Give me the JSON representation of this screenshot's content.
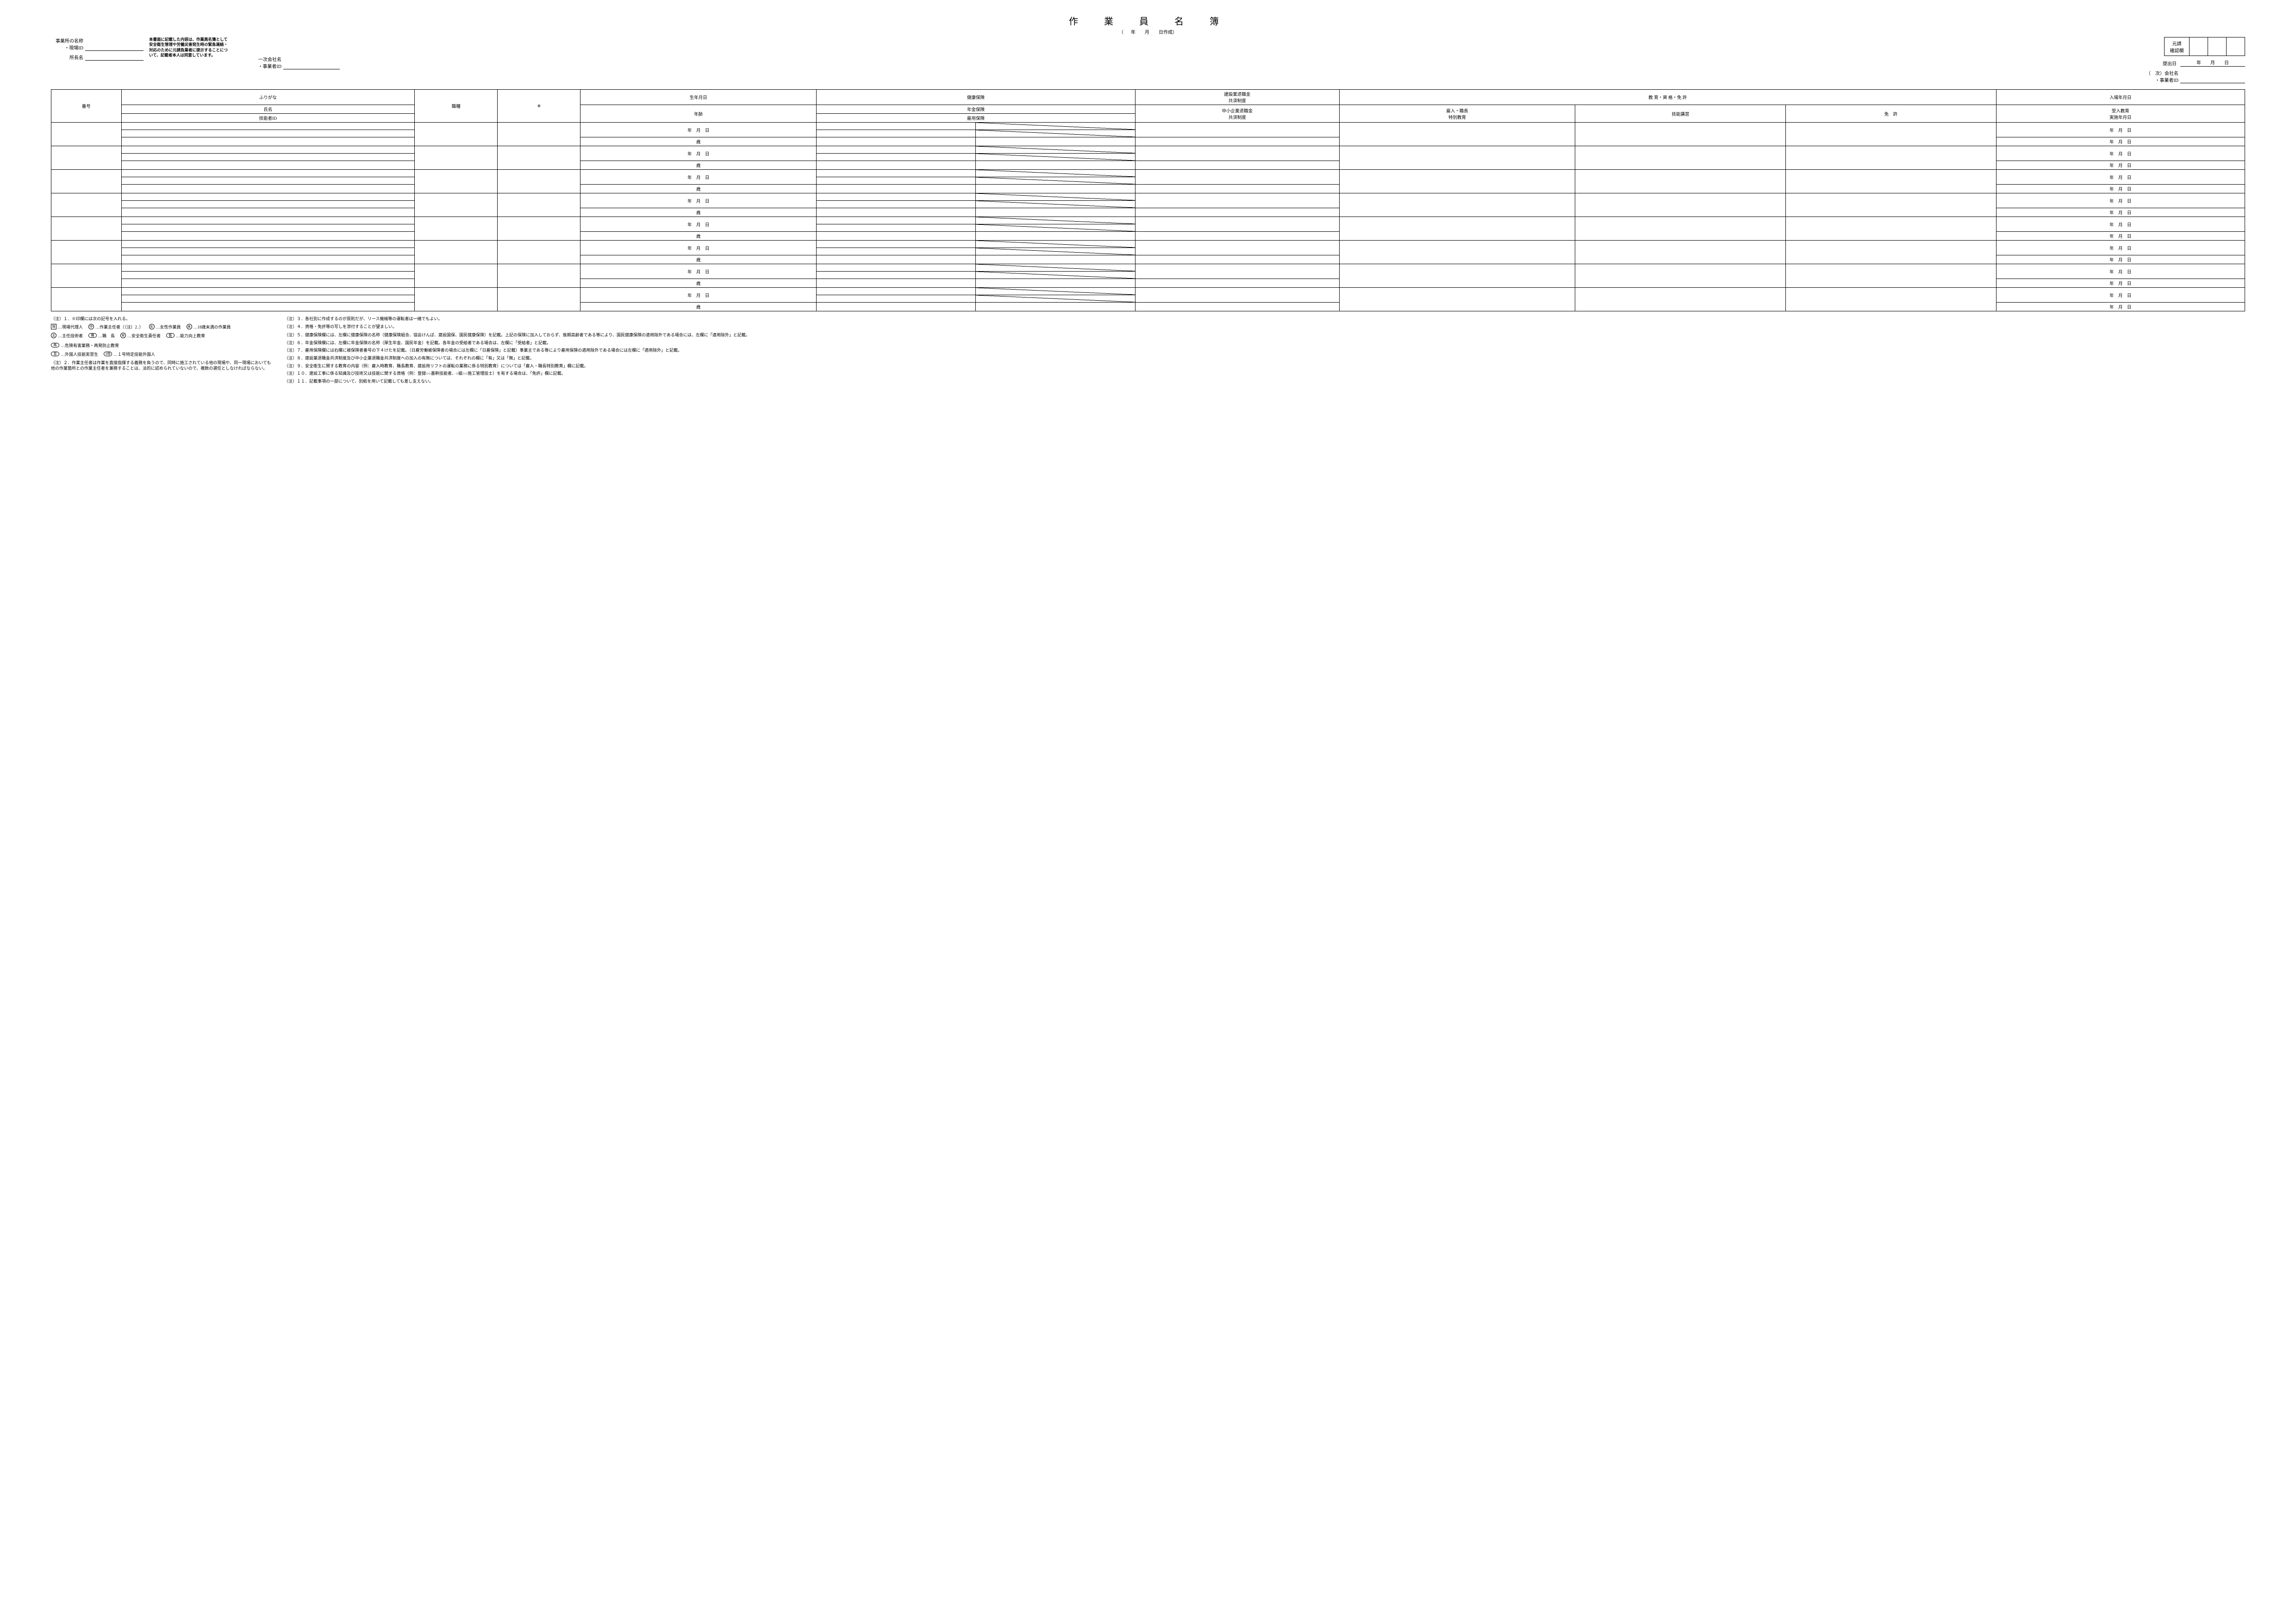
{
  "title": "作　業　員　名　簿",
  "subtitle_open": "（",
  "subtitle_date": "年　　月　　日作成",
  "subtitle_close": "）",
  "left": {
    "office_label": "事業所の名称\n・現場ID",
    "foreman_label": "所長名"
  },
  "consent": "本書面に記載した内容は、作業員名簿として安全衛生管理や労働災害発生時の緊急連絡・対応のために元請負業者に提示することについて、記載者本人は同意しています。",
  "mid": {
    "primary_label": "一次会社名\n・事業者ID"
  },
  "right": {
    "confirm_label": "元請\n確認欄",
    "submit_label": "提出日",
    "submit_date": "年　　月　　日",
    "next_label": "（　次）会社名\n・事業者ID"
  },
  "head": {
    "no": "番号",
    "furigana": "ふりがな",
    "name": "氏名",
    "gid": "技能者ID",
    "job": "職種",
    "mark": "※",
    "dob": "生年月日",
    "age": "年齢",
    "health": "健康保険",
    "pension": "年金保険",
    "emp": "雇用保険",
    "kensetsu": "建設業退職金\n共済制度",
    "chusho": "中小企業退職金\n共済制度",
    "qual_group": "教 育・資 格・免 許",
    "q1": "雇入・職長\n特別教育",
    "q2": "技能講習",
    "q3": "免　許",
    "entry": "入場年月日",
    "edu": "受入教育\n実施年月日"
  },
  "row": {
    "ymd": "年　月　日",
    "sai": "歳"
  },
  "notes_left": {
    "n1": "（注）１．※印欄には次の記号を入れる。",
    "n2": "（注）２．作業主任者は作業を直接指揮する義務を負うので、同時に施工されている他の現場や、同一現場においても他の作業箇所との作業主任者を兼務することは、法的に認められていないので、複数の選任としなければならない。"
  },
  "legend": {
    "gen": "現",
    "gen_t": "…現場代理人",
    "saku": "作",
    "saku_t": "…作業主任者（（注）2．）",
    "jo": "女",
    "jo_t": "…女性作業員",
    "mi": "未",
    "mi_t": "…18歳未満の作業員",
    "shu": "主",
    "shu_t": "…主任技術者",
    "shoku": "職",
    "shoku_t": "…職　長",
    "an": "安",
    "an_t": "…安全衛生責任者",
    "nou": "能",
    "nou_t": "…能力向上教育",
    "sai": "再",
    "sai_t": "…危険有害業務・再発防止教育",
    "shuu": "習",
    "shuu_t": "…外国人技能実習生",
    "ichi": "1特",
    "ichi_t": "…１号特定技能外国人"
  },
  "notes_right": {
    "n3": "（注）３．各社別に作成するのが原則だが、リース機械等の運転者は一緒でもよい。",
    "n4": "（注）４．資格・免許等の写しを添付することが望ましい。",
    "n5": "（注）５．健康保険欄には、左欄に健康保険の名称（健康保険組合、協会けんぽ、建設国保、国民健康保険）を記載。上記の保険に加入しておらず、後期高齢者である等により、国民健康保険の適用除外である場合には、左欄に「適用除外」と記載。",
    "n6": "（注）６．年金保険欄には、左欄に年金保険の名称（厚生年金、国民年金）を記載。各年金の受給者である場合は、左欄に「受給者」と記載。",
    "n7": "（注）７．雇用保険欄には右欄に被保険者番号の下４けたを記載。（日雇労働被保険者の場合には左欄に「日雇保険」と記載）事業主である等により雇用保険の適用除外である場合には左欄に「適用除外」と記載。",
    "n8": "（注）８．建設業退職金共済制度及び中小企業退職金共済制度への加入の有無については、それぞれの欄に「有」又は「無」と記載。",
    "n9": "（注）９．安全衛生に関する教育の内容（例：雇入時教育、職長教育、建設用リフトの運転の業務に係る特別教育）については「雇入・職長特別教育」欄に記載。",
    "n10": "（注）１０．建設工事に係る知識及び技術又は技能に関する資格（例：登録○○基幹技能者、○級○○施工管理技士）を有する場合は、「免許」欄に記載。",
    "n11": "（注）１１．記載事項の一部について、別紙を用いて記載しても差し支えない。"
  },
  "row_count": 8
}
